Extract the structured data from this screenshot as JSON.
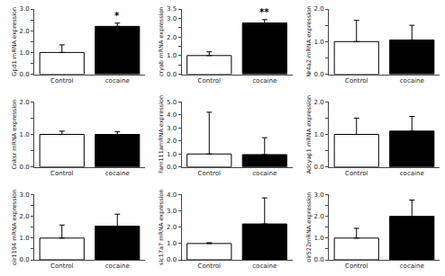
{
  "chart_data": [
    {
      "type": "bar",
      "ylabel": "Gpd1 mRNA expression",
      "categories": [
        "Control",
        "cocaine"
      ],
      "values": [
        1.0,
        2.2
      ],
      "errors": [
        0.35,
        0.15
      ],
      "colors": [
        "white",
        "black"
      ],
      "ylim": [
        0,
        3.0
      ],
      "yticks": [
        {
          "value": 0.0,
          "label": "0.0"
        },
        {
          "value": 0.5,
          "label": null
        },
        {
          "value": 1.0,
          "label": "1.0"
        },
        {
          "value": 1.5,
          "label": null
        },
        {
          "value": 2.0,
          "label": "2.0"
        },
        {
          "value": 2.5,
          "label": null
        },
        {
          "value": 3.0,
          "label": "3.0"
        }
      ],
      "grid": false,
      "annotations": [
        {
          "x": "cocaine",
          "text": "*"
        }
      ]
    },
    {
      "type": "bar",
      "ylabel": "cryab mRNA expression",
      "categories": [
        "Control",
        "cocaine"
      ],
      "values": [
        1.0,
        2.75
      ],
      "errors": [
        0.2,
        0.18
      ],
      "colors": [
        "white",
        "black"
      ],
      "ylim": [
        0,
        3.5
      ],
      "yticks": [
        {
          "value": 0.0,
          "label": "0.0"
        },
        {
          "value": 0.5,
          "label": null
        },
        {
          "value": 1.0,
          "label": "1.0"
        },
        {
          "value": 1.5,
          "label": null
        },
        {
          "value": 2.0,
          "label": "2.0"
        },
        {
          "value": 2.5,
          "label": null
        },
        {
          "value": 3.0,
          "label": "3.0"
        },
        3.5
      ],
      "grid": false,
      "annotations": [
        {
          "x": "cocaine",
          "text": "**"
        }
      ]
    },
    {
      "type": "bar",
      "ylabel": "Nr4a2 mRNA expression",
      "categories": [
        "Control",
        "cocaine"
      ],
      "values": [
        1.0,
        1.05
      ],
      "errors": [
        0.65,
        0.45
      ],
      "colors": [
        "white",
        "black"
      ],
      "ylim": [
        0,
        2.0
      ],
      "yticks": [
        {
          "value": 0.0,
          "label": "0.0"
        },
        {
          "value": 0.5,
          "label": null
        },
        {
          "value": 1.0,
          "label": "1.0"
        },
        {
          "value": 1.5,
          "label": null
        },
        {
          "value": 2.0,
          "label": "2.0"
        }
      ],
      "grid": false
    },
    {
      "type": "bar",
      "ylabel": "Cnksr mRNA expression",
      "categories": [
        "Control",
        "cocaine"
      ],
      "values": [
        1.0,
        1.0
      ],
      "errors": [
        0.1,
        0.08
      ],
      "colors": [
        "white",
        "black"
      ],
      "ylim": [
        0,
        2.0
      ],
      "yticks": [
        {
          "value": 0.0,
          "label": "0.0"
        },
        {
          "value": 0.5,
          "label": null
        },
        {
          "value": 1.0,
          "label": "1.0"
        },
        {
          "value": 1.5,
          "label": null
        },
        {
          "value": 2.0,
          "label": "2.0"
        }
      ],
      "grid": false
    },
    {
      "type": "bar",
      "ylabel": "Fam111amRNA expression",
      "categories": [
        "Control",
        "cocaine"
      ],
      "values": [
        1.0,
        0.95
      ],
      "errors": [
        3.2,
        1.3
      ],
      "colors": [
        "white",
        "black"
      ],
      "ylim": [
        0,
        5.0
      ],
      "yticks": [
        {
          "value": 0.0,
          "label": "0.0"
        },
        {
          "value": 1.0,
          "label": "1.0"
        },
        {
          "value": 2.0,
          "label": "2.0"
        },
        {
          "value": 3.0,
          "label": "3.0"
        },
        {
          "value": 4.0,
          "label": "4.0"
        },
        {
          "value": 5.0,
          "label": "5.0"
        }
      ],
      "grid": false
    },
    {
      "type": "bar",
      "ylabel": "Adcyap1 mRNA expression",
      "categories": [
        "Control",
        "cocaine"
      ],
      "values": [
        1.0,
        1.1
      ],
      "errors": [
        0.5,
        0.45
      ],
      "colors": [
        "white",
        "black"
      ],
      "ylim": [
        0,
        2.0
      ],
      "yticks": [
        {
          "value": 0.0,
          "label": "0.0"
        },
        {
          "value": 0.5,
          "label": null
        },
        {
          "value": 1.0,
          "label": "1.0"
        },
        {
          "value": 1.5,
          "label": null
        },
        {
          "value": 2.0,
          "label": "2.0"
        }
      ],
      "grid": false
    },
    {
      "type": "bar",
      "ylabel": "olr1194 mRNA expression",
      "categories": [
        "Control",
        "cocaine"
      ],
      "values": [
        1.0,
        1.55
      ],
      "errors": [
        0.6,
        0.55
      ],
      "colors": [
        "white",
        "black"
      ],
      "ylim": [
        0,
        3.0
      ],
      "yticks": [
        {
          "value": 0.0,
          "label": "0.0"
        },
        {
          "value": 0.5,
          "label": null
        },
        {
          "value": 1.0,
          "label": "1.0"
        },
        {
          "value": 1.5,
          "label": null
        },
        {
          "value": 2.0,
          "label": "2.0"
        },
        {
          "value": 2.5,
          "label": null
        },
        {
          "value": 3.0,
          "label": "3.0"
        }
      ],
      "grid": false
    },
    {
      "type": "bar",
      "ylabel": "slc17a7 mRNA expression",
      "categories": [
        "Control",
        "cocaine"
      ],
      "values": [
        1.0,
        2.2
      ],
      "errors": [
        0.05,
        1.6
      ],
      "colors": [
        "white",
        "black"
      ],
      "ylim": [
        0,
        4.0
      ],
      "yticks": [
        {
          "value": 0.0,
          "label": "0.0"
        },
        {
          "value": 1.0,
          "label": "1.0"
        },
        {
          "value": 2.0,
          "label": "2.0"
        },
        {
          "value": 3.0,
          "label": "3.0"
        },
        {
          "value": 4.0,
          "label": "4.0"
        }
      ],
      "grid": false
    },
    {
      "type": "bar",
      "ylabel": "olr522mRNA expression",
      "categories": [
        "Control",
        "cocaine"
      ],
      "values": [
        1.0,
        2.0
      ],
      "errors": [
        0.45,
        0.75
      ],
      "colors": [
        "white",
        "black"
      ],
      "ylim": [
        0,
        3.0
      ],
      "yticks": [
        {
          "value": 0.0,
          "label": "0.0"
        },
        {
          "value": 0.5,
          "label": null
        },
        {
          "value": 1.0,
          "label": "1.0"
        },
        {
          "value": 1.5,
          "label": null
        },
        {
          "value": 2.0,
          "label": "2.0"
        },
        {
          "value": 2.5,
          "label": null
        },
        {
          "value": 3.0,
          "label": "3.0"
        }
      ],
      "grid": false
    }
  ]
}
